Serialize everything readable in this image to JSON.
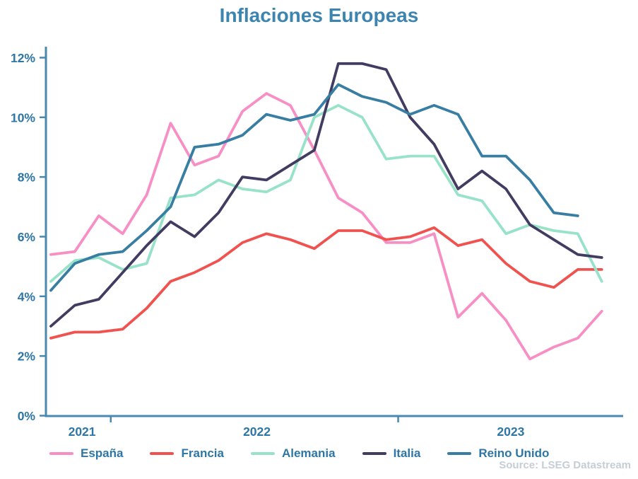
{
  "colors": {
    "axis": "#4988AF",
    "tick_label": "#2E76A6",
    "title": "#3C85B0",
    "source": "#C5CDD5"
  },
  "chart_data": {
    "type": "line",
    "title": "Inflaciones Europeas",
    "source": "Source: LSEG Datastream",
    "frequency": "monthly",
    "x_start": "2021-10",
    "x_end": "2023-09",
    "grid": false,
    "legend_position": "bottom",
    "ylim": [
      0,
      12
    ],
    "yticks": [
      {
        "value": 0,
        "label": "0%"
      },
      {
        "value": 2,
        "label": "2%"
      },
      {
        "value": 4,
        "label": "4%"
      },
      {
        "value": 6,
        "label": "6%"
      },
      {
        "value": 8,
        "label": "8%"
      },
      {
        "value": 10,
        "label": "10%"
      },
      {
        "value": 12,
        "label": "12%"
      }
    ],
    "year_boundary_ticks": [
      {
        "index": 2.5
      },
      {
        "index": 14.5
      }
    ],
    "year_labels": [
      {
        "label": "2021",
        "index": 1.3
      },
      {
        "label": "2022",
        "index": 8.6
      },
      {
        "label": "2023",
        "index": 19.2
      }
    ],
    "categories": [
      "2021-10",
      "2021-11",
      "2021-12",
      "2022-01",
      "2022-02",
      "2022-03",
      "2022-04",
      "2022-05",
      "2022-06",
      "2022-07",
      "2022-08",
      "2022-09",
      "2022-10",
      "2022-11",
      "2022-12",
      "2023-01",
      "2023-02",
      "2023-03",
      "2023-04",
      "2023-05",
      "2023-06",
      "2023-07",
      "2023-08",
      "2023-09"
    ],
    "series": [
      {
        "name": "España",
        "color": "#F78FC5",
        "values": [
          5.4,
          5.5,
          6.7,
          6.1,
          7.4,
          9.8,
          8.4,
          8.7,
          10.2,
          10.8,
          10.4,
          8.9,
          7.3,
          6.8,
          5.8,
          5.8,
          6.1,
          3.3,
          4.1,
          3.2,
          1.9,
          2.3,
          2.6,
          3.5
        ]
      },
      {
        "name": "Francia",
        "color": "#F0534F",
        "values": [
          2.6,
          2.8,
          2.8,
          2.9,
          3.6,
          4.5,
          4.8,
          5.2,
          5.8,
          6.1,
          5.9,
          5.6,
          6.2,
          6.2,
          5.9,
          6.0,
          6.3,
          5.7,
          5.9,
          5.1,
          4.5,
          4.3,
          4.9,
          4.9
        ]
      },
      {
        "name": "Alemania",
        "color": "#98E3C8",
        "values": [
          4.5,
          5.2,
          5.3,
          4.9,
          5.1,
          7.3,
          7.4,
          7.9,
          7.6,
          7.5,
          7.9,
          10.0,
          10.4,
          10.0,
          8.6,
          8.7,
          8.7,
          7.4,
          7.2,
          6.1,
          6.4,
          6.2,
          6.1,
          4.5
        ]
      },
      {
        "name": "Italia",
        "color": "#413C60",
        "values": [
          3.0,
          3.7,
          3.9,
          4.8,
          5.7,
          6.5,
          6.0,
          6.8,
          8.0,
          7.9,
          8.4,
          8.9,
          11.8,
          11.8,
          11.6,
          10.0,
          9.1,
          7.6,
          8.2,
          7.6,
          6.4,
          5.9,
          5.4,
          5.3
        ]
      },
      {
        "name": "Reino Unido",
        "color": "#377EA2",
        "values": [
          4.2,
          5.1,
          5.4,
          5.5,
          6.2,
          7.0,
          9.0,
          9.1,
          9.4,
          10.1,
          9.9,
          10.1,
          11.1,
          10.7,
          10.5,
          10.1,
          10.4,
          10.1,
          8.7,
          8.7,
          7.9,
          6.8,
          6.7
        ]
      }
    ]
  }
}
